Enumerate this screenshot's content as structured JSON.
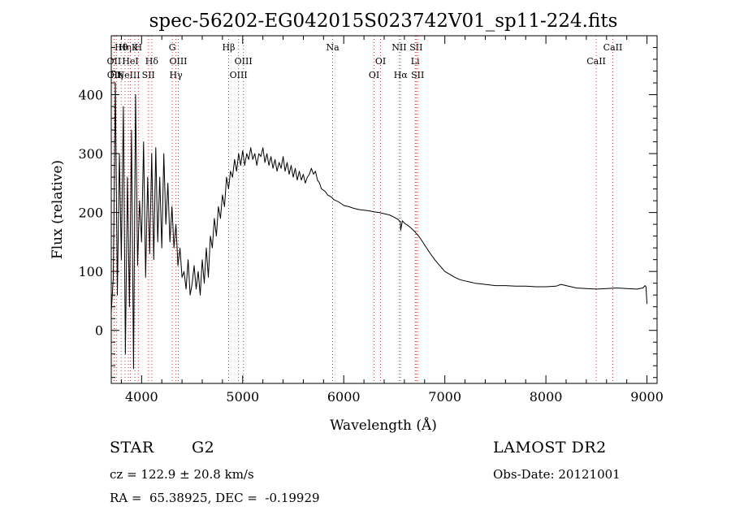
{
  "chart_data": {
    "type": "line",
    "title": "spec-56202-EG042015S023742V01_sp11-224.fits",
    "xlabel": "Wavelength (Å)",
    "ylabel": "Flux (relative)",
    "xlim": [
      3700,
      9100
    ],
    "ylim": [
      -90,
      500
    ],
    "x_ticks": [
      4000,
      5000,
      6000,
      7000,
      8000,
      9000
    ],
    "y_ticks": [
      0,
      100,
      200,
      300,
      400
    ],
    "grid": false,
    "series": [
      {
        "x": [
          3700,
          3720,
          3740,
          3760,
          3780,
          3800,
          3820,
          3840,
          3860,
          3880,
          3900,
          3920,
          3940,
          3960,
          3980,
          4000,
          4020,
          4040,
          4060,
          4080,
          4100,
          4120,
          4140,
          4160,
          4180,
          4200,
          4220,
          4240,
          4260,
          4280,
          4300,
          4320,
          4340,
          4360,
          4380,
          4400,
          4420,
          4440,
          4460,
          4480,
          4500,
          4520,
          4540,
          4560,
          4580,
          4600,
          4620,
          4640,
          4660,
          4680,
          4700,
          4720,
          4740,
          4760,
          4780,
          4800,
          4820,
          4840,
          4860,
          4880,
          4900,
          4920,
          4940,
          4960,
          4980,
          5000,
          5020,
          5040,
          5060,
          5080,
          5100,
          5120,
          5140,
          5160,
          5180,
          5200,
          5220,
          5240,
          5260,
          5280,
          5300,
          5320,
          5340,
          5360,
          5380,
          5400,
          5420,
          5440,
          5460,
          5480,
          5500,
          5520,
          5540,
          5560,
          5580,
          5600,
          5620,
          5640,
          5660,
          5680,
          5700,
          5720,
          5740,
          5760,
          5780,
          5800,
          5820,
          5840,
          5860,
          5880,
          5900,
          5950,
          6000,
          6050,
          6100,
          6150,
          6200,
          6250,
          6300,
          6350,
          6400,
          6450,
          6500,
          6520,
          6540,
          6560,
          6563,
          6580,
          6600,
          6650,
          6700,
          6750,
          6800,
          6850,
          6900,
          6950,
          7000,
          7050,
          7100,
          7150,
          7200,
          7250,
          7300,
          7350,
          7400,
          7450,
          7500,
          7600,
          7700,
          7800,
          7900,
          8000,
          8100,
          8150,
          8200,
          8250,
          8300,
          8400,
          8500,
          8600,
          8700,
          8800,
          8900,
          8960,
          8980,
          8990,
          9000
        ],
        "y": [
          30,
          90,
          420,
          60,
          300,
          120,
          380,
          -40,
          260,
          40,
          340,
          -65,
          400,
          110,
          220,
          150,
          320,
          90,
          260,
          130,
          300,
          120,
          310,
          150,
          260,
          140,
          300,
          180,
          250,
          150,
          210,
          140,
          180,
          110,
          140,
          90,
          100,
          70,
          120,
          60,
          80,
          110,
          70,
          100,
          60,
          120,
          80,
          140,
          90,
          160,
          140,
          190,
          160,
          210,
          190,
          230,
          210,
          260,
          240,
          270,
          260,
          290,
          270,
          300,
          280,
          305,
          280,
          300,
          290,
          310,
          290,
          300,
          280,
          300,
          295,
          310,
          285,
          300,
          280,
          295,
          275,
          290,
          270,
          285,
          275,
          295,
          270,
          285,
          265,
          280,
          260,
          275,
          255,
          270,
          255,
          265,
          250,
          260,
          265,
          275,
          265,
          270,
          255,
          250,
          240,
          238,
          235,
          230,
          228,
          226,
          222,
          218,
          212,
          210,
          207,
          205,
          204,
          203,
          201,
          200,
          198,
          196,
          192,
          190,
          188,
          184,
          170,
          186,
          182,
          176,
          168,
          158,
          145,
          132,
          120,
          110,
          100,
          95,
          90,
          86,
          84,
          82,
          80,
          79,
          78,
          77,
          76,
          76,
          75,
          75,
          74,
          74,
          75,
          78,
          76,
          74,
          72,
          71,
          70,
          71,
          72,
          71,
          70,
          72,
          76,
          74,
          45
        ]
      }
    ],
    "line_markers": [
      {
        "x": 3727,
        "label": "OII",
        "row": 2
      },
      {
        "x": 3729,
        "label": "OII",
        "row": 3
      },
      {
        "x": 3750,
        "label": "Hη",
        "row": 3
      },
      {
        "x": 3798,
        "label": "Hθ",
        "row": 1
      },
      {
        "x": 3835,
        "label": "Hη",
        "row": 1
      },
      {
        "x": 3869,
        "label": "NeIII",
        "row": 3
      },
      {
        "x": 3889,
        "label": "HeI",
        "row": 2
      },
      {
        "x": 3933,
        "label": "K",
        "row": 1
      },
      {
        "x": 3968,
        "label": "H",
        "row": 1
      },
      {
        "x": 4101,
        "label": "Hδ",
        "row": 2
      },
      {
        "x": 4068,
        "label": "SII",
        "row": 3
      },
      {
        "x": 4304,
        "label": "G",
        "row": 1
      },
      {
        "x": 4340,
        "label": "Hγ",
        "row": 3
      },
      {
        "x": 4363,
        "label": "OIII",
        "row": 2
      },
      {
        "x": 4861,
        "label": "Hβ",
        "row": 1
      },
      {
        "x": 4959,
        "label": "OIII",
        "row": 3
      },
      {
        "x": 5007,
        "label": "OIII",
        "row": 2
      },
      {
        "x": 5890,
        "label": "Na",
        "row": 1
      },
      {
        "x": 6300,
        "label": "OI",
        "row": 3
      },
      {
        "x": 6364,
        "label": "OI",
        "row": 2
      },
      {
        "x": 6548,
        "label": "NII",
        "row": 1
      },
      {
        "x": 6563,
        "label": "Hα",
        "row": 3
      },
      {
        "x": 6707,
        "label": "Li",
        "row": 2
      },
      {
        "x": 6716,
        "label": "SII",
        "row": 1
      },
      {
        "x": 6731,
        "label": "SII",
        "row": 3
      },
      {
        "x": 8498,
        "label": "CaII",
        "row": 2
      },
      {
        "x": 8662,
        "label": "CaII",
        "row": 1
      }
    ]
  },
  "info": {
    "object_class": "STAR",
    "subclass": "G2",
    "cz": "cz = 122.9 ± 20.8 km/s",
    "coords": "RA =  65.38925, DEC =  -0.19929",
    "survey": "LAMOST DR2",
    "obs_date": "Obs-Date: 20121001"
  }
}
